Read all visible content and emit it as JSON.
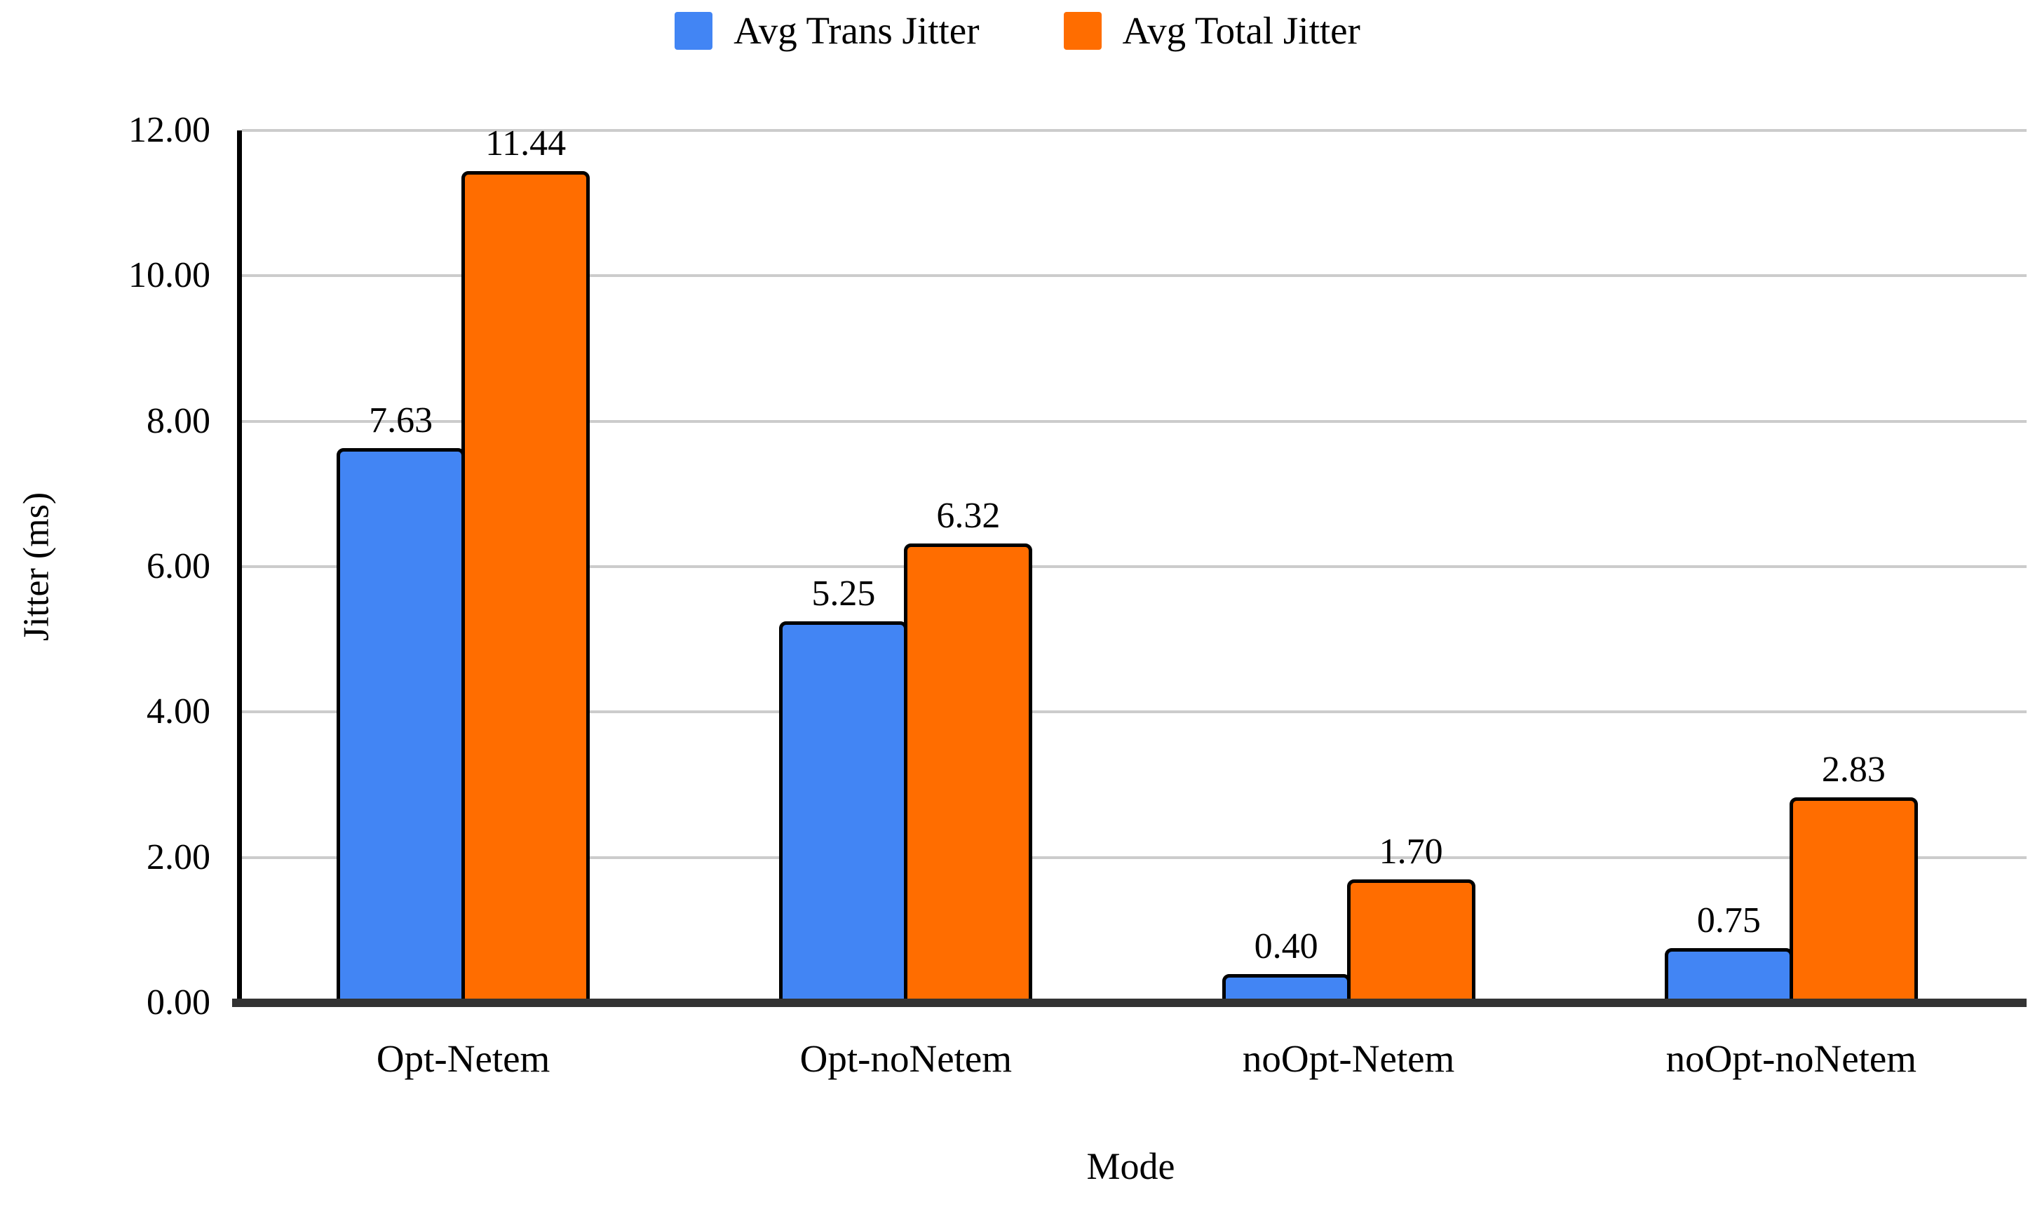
{
  "chart_data": {
    "type": "bar",
    "categories": [
      "Opt-Netem",
      "Opt-noNetem",
      "noOpt-Netem",
      "noOpt-noNetem"
    ],
    "series": [
      {
        "name": "Avg Trans Jitter",
        "color": "#4285F4",
        "values": [
          7.63,
          5.25,
          0.4,
          0.75
        ],
        "labels": [
          "7.63",
          "5.25",
          "0.40",
          "0.75"
        ]
      },
      {
        "name": "Avg Total Jitter",
        "color": "#FF6D00",
        "values": [
          11.44,
          6.32,
          1.7,
          2.83
        ],
        "labels": [
          "11.44",
          "6.32",
          "1.70",
          "2.83"
        ]
      }
    ],
    "xlabel": "Mode",
    "ylabel": "Jitter (ms)",
    "ylim": [
      0,
      12
    ],
    "ytick_step": 2,
    "yticks": [
      "0.00",
      "2.00",
      "4.00",
      "6.00",
      "8.00",
      "10.00",
      "12.00"
    ],
    "grid": true,
    "legend_position": "top",
    "colors": {
      "gridline": "#cccccc",
      "baseline": "#333333",
      "axis": "#000000",
      "bar_outline": "#000000",
      "text": "#000000",
      "background": "#ffffff"
    }
  }
}
